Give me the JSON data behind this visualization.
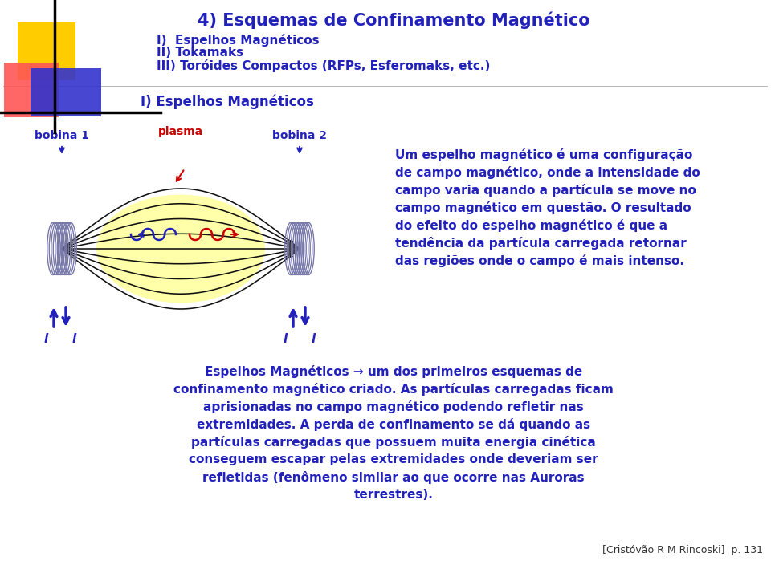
{
  "title": "4) Esquemas de Confinamento Magnético",
  "subtitle_items": [
    "I)  Espelhos Magnéticos",
    "II) Tokamaks",
    "III) Toróides Compactos (RFPs, Esferomaks, etc.)"
  ],
  "section_title": "I) Espelhos Magnéticos",
  "label_bobina1": "bobina 1",
  "label_plasma": "plasma",
  "label_bobina2": "bobina 2",
  "label_i": "i",
  "text_right_lines": [
    "Um espelho magnético é uma configuração",
    "de campo magnético, onde a intensidade do",
    "campo varia quando a partícula se move no",
    "campo magnético em questão. O resultado",
    "do efeito do espelho magnético é que a",
    "tendência da partícula carregada retornar",
    "das regiões onde o campo é mais intenso."
  ],
  "text_bottom_lines": [
    "Espelhos Magnéticos → um dos primeiros esquemas de",
    "confinamento magnético criado. As partículas carregadas ficam",
    "aprisionadas no campo magnético podendo refletir nas",
    "extremidades. A perda de confinamento se dá quando as",
    "partículas carregadas que possuem muita energia cinética",
    "conseguem escapar pelas extremidades onde deveriam ser",
    "refletidas (fenômeno similar ao que ocorre nas Auroras",
    "terrestres)."
  ],
  "footer": "[Cristóvão R M Rincoski]  p. 131",
  "bg_color": "#ffffff",
  "title_color": "#2222bb",
  "text_color": "#2222bb",
  "coil_color": "#7777aa",
  "arrow_color": "#2222bb",
  "red_color": "#cc0000",
  "yellow_sq_color": "#ffcc00",
  "red_sq_color": "#ff5555",
  "blue_sq_color": "#3333cc",
  "plasma_fill": "#ffffaa",
  "line_color": "#111111"
}
